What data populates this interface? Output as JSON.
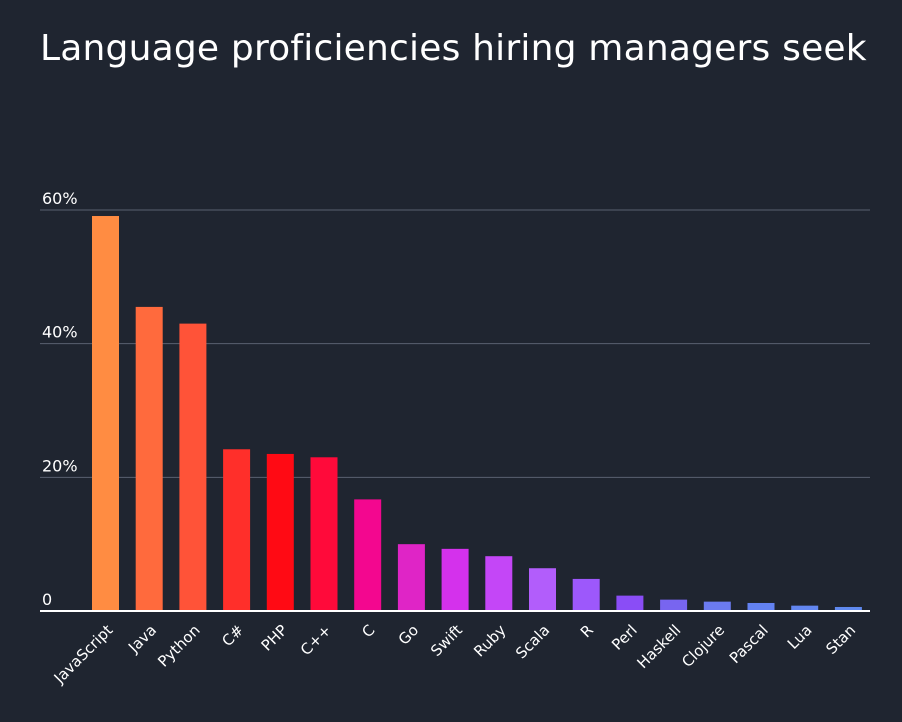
{
  "chart_data": {
    "type": "bar",
    "title": "Language proficiencies hiring managers seek",
    "xlabel": "",
    "ylabel": "",
    "ylim": [
      0,
      60
    ],
    "yticks": [
      0,
      20,
      40,
      60
    ],
    "ytick_labels": [
      "0",
      "20%",
      "40%",
      "60%"
    ],
    "grid": true,
    "categories": [
      "JavaScript",
      "Java",
      "Python",
      "C#",
      "PHP",
      "C++",
      "C",
      "Go",
      "Swift",
      "Ruby",
      "Scala",
      "R",
      "Perl",
      "Haskell",
      "Clojure",
      "Pascal",
      "Lua",
      "Stan"
    ],
    "values": [
      59.1,
      45.5,
      43.0,
      24.2,
      23.5,
      23.0,
      16.7,
      10.0,
      9.3,
      8.2,
      6.4,
      4.8,
      2.3,
      1.7,
      1.4,
      1.2,
      0.8,
      0.6
    ],
    "colors": [
      "#ff8c42",
      "#ff6a3d",
      "#ff5338",
      "#ff2f2a",
      "#ff0a14",
      "#ff0a3a",
      "#f3078f",
      "#df25c6",
      "#d431ec",
      "#c446f7",
      "#b25dfb",
      "#9d58fb",
      "#8a4df6",
      "#7865f0",
      "#6b7bf0",
      "#6382f2",
      "#6286f0",
      "#5f89ee"
    ]
  },
  "colors": {
    "background": "#1f2530",
    "gridline": "#5a6170",
    "baseline": "#ffffff",
    "text": "#ffffff"
  }
}
